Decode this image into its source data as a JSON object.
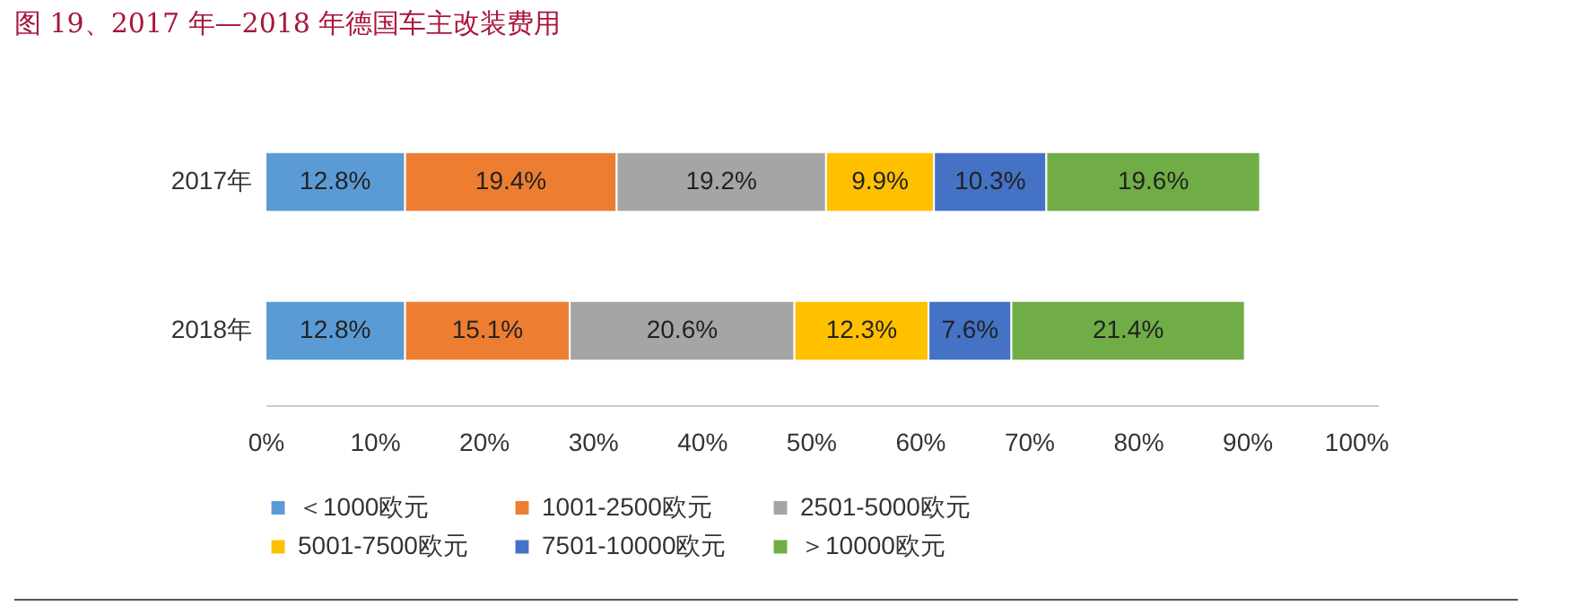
{
  "chart_data": {
    "type": "bar",
    "title": "图 19、2017 年—2018 年德国车主改装费用",
    "orientation": "horizontal",
    "stacked": true,
    "categories": [
      "2017年",
      "2018年"
    ],
    "series": [
      {
        "name": "＜1000欧元",
        "color": "#5b9bd5",
        "values": [
          12.8,
          12.8
        ],
        "value_labels": [
          "12.8%",
          "12.8%"
        ]
      },
      {
        "name": "1001-2500欧元",
        "color": "#ed7d31",
        "values": [
          19.4,
          15.1
        ],
        "value_labels": [
          "19.4%",
          "15.1%"
        ]
      },
      {
        "name": "2501-5000欧元",
        "color": "#a5a5a5",
        "values": [
          19.2,
          20.6
        ],
        "value_labels": [
          "19.2%",
          "20.6%"
        ]
      },
      {
        "name": "5001-7500欧元",
        "color": "#ffc000",
        "values": [
          9.9,
          12.3
        ],
        "value_labels": [
          "9.9%",
          "12.3%"
        ]
      },
      {
        "name": "7501-10000欧元",
        "color": "#4472c4",
        "values": [
          10.3,
          7.6
        ],
        "value_labels": [
          "10.3%",
          "7.6%"
        ]
      },
      {
        "name": "＞10000欧元",
        "color": "#70ad47",
        "values": [
          19.6,
          21.4
        ],
        "value_labels": [
          "19.6%",
          "21.4%"
        ]
      }
    ],
    "xlim": [
      0,
      102
    ],
    "xticks": [
      {
        "value": 0,
        "label": "0%"
      },
      {
        "value": 10,
        "label": "10%"
      },
      {
        "value": 20,
        "label": "20%"
      },
      {
        "value": 30,
        "label": "30%"
      },
      {
        "value": 40,
        "label": "40%"
      },
      {
        "value": 50,
        "label": "50%"
      },
      {
        "value": 60,
        "label": "60%"
      },
      {
        "value": 70,
        "label": "70%"
      },
      {
        "value": 80,
        "label": "80%"
      },
      {
        "value": 90,
        "label": "90%"
      },
      {
        "value": 100,
        "label": "100%"
      }
    ],
    "legend": "bottom",
    "grid": false
  }
}
